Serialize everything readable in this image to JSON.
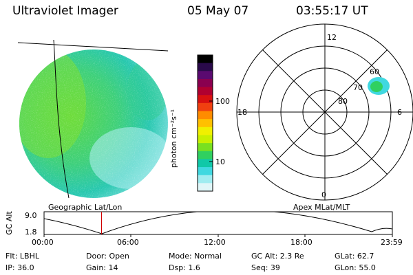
{
  "header": {
    "instrument": "Ultraviolet Imager",
    "date": "05 May 07",
    "time": "03:55:17 UT"
  },
  "image_panel": {
    "caption": "Geographic Lat/Lon"
  },
  "colorbar": {
    "unit_label": "photon cm⁻²s⁻¹",
    "ticks": [
      "100",
      "10"
    ],
    "colors": [
      "#000000",
      "#2a0a4a",
      "#5a0a70",
      "#8a0050",
      "#b00030",
      "#d81010",
      "#f04010",
      "#ff8c00",
      "#ffc000",
      "#f0f000",
      "#c8f000",
      "#78e020",
      "#30d060",
      "#10c8a8",
      "#40d8e0",
      "#a0ecf0",
      "#e0f6f8"
    ]
  },
  "polar_plot": {
    "caption": "Apex MLat/MLT",
    "mlt_labels": {
      "top": "12",
      "left": "18",
      "right": "6",
      "bottom": "0"
    },
    "mlat_labels": [
      "60",
      "70",
      "80"
    ]
  },
  "altitude_plot": {
    "ylabel": "GC Alt",
    "yticks": [
      "9.0",
      "1.8"
    ],
    "xticks": [
      "00:00",
      "06:00",
      "12:00",
      "18:00",
      "23:59"
    ],
    "current_time_fraction": 0.165
  },
  "info": {
    "filter": "Flt: LBHL",
    "door": "Door: Open",
    "mode": "Mode: Normal",
    "gc_alt": "GC Alt: 2.3 Re",
    "glat": "GLat: 62.7",
    "ip": "IP: 36.0",
    "gain": "Gain: 14",
    "dsp": "Dsp:     1.6",
    "seq": "Seq: 39",
    "glon": "GLon: 55.0"
  }
}
